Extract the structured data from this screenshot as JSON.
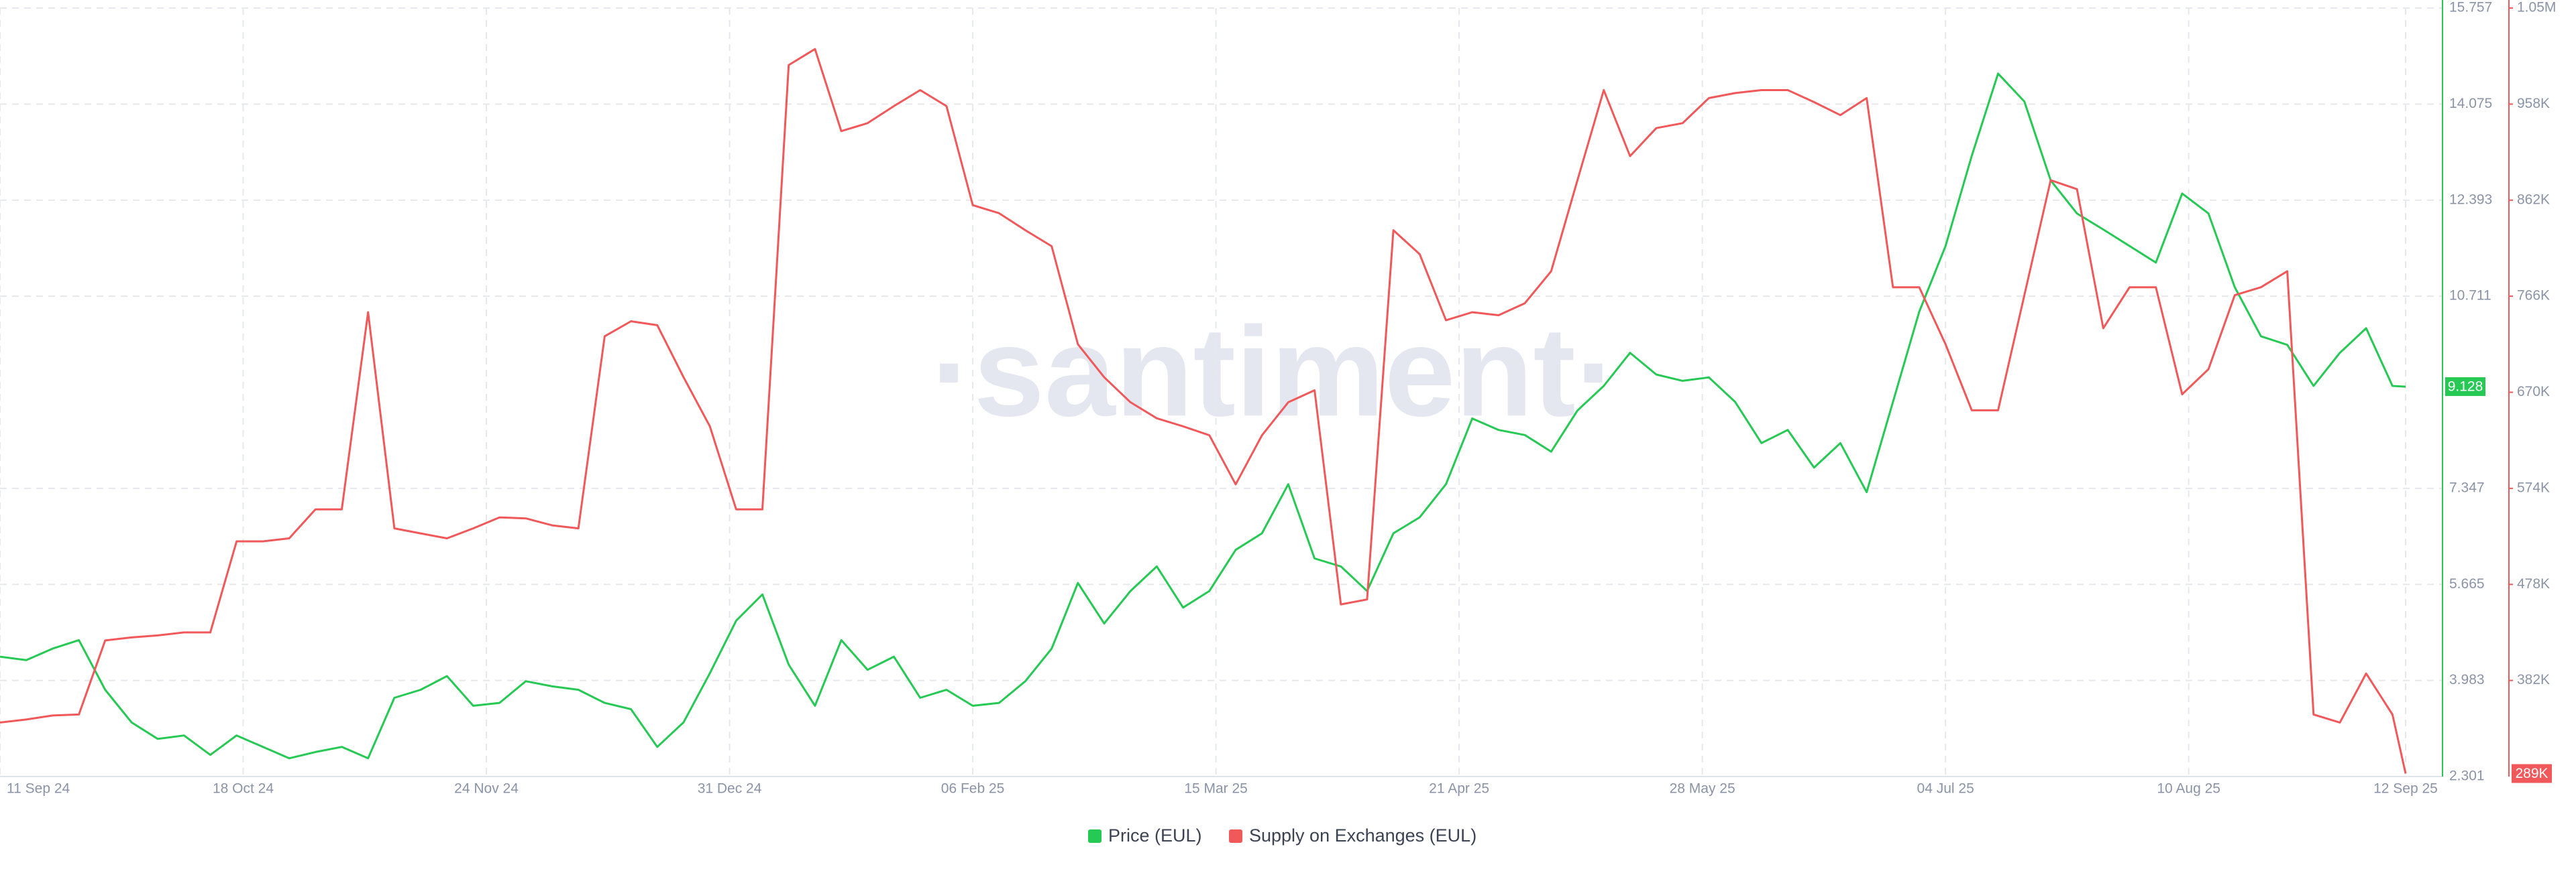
{
  "chart_data": {
    "type": "line",
    "watermark": "·santiment·",
    "x": [
      "2024-09-11",
      "2024-09-15",
      "2024-09-19",
      "2024-09-23",
      "2024-09-27",
      "2024-10-01",
      "2024-10-05",
      "2024-10-09",
      "2024-10-13",
      "2024-10-17",
      "2024-10-21",
      "2024-10-25",
      "2024-10-29",
      "2024-11-02",
      "2024-11-06",
      "2024-11-10",
      "2024-11-14",
      "2024-11-18",
      "2024-11-22",
      "2024-11-26",
      "2024-11-30",
      "2024-12-04",
      "2024-12-08",
      "2024-12-12",
      "2024-12-16",
      "2024-12-20",
      "2024-12-24",
      "2024-12-28",
      "2025-01-01",
      "2025-01-05",
      "2025-01-09",
      "2025-01-13",
      "2025-01-17",
      "2025-01-21",
      "2025-01-25",
      "2025-01-29",
      "2025-02-02",
      "2025-02-06",
      "2025-02-10",
      "2025-02-14",
      "2025-02-18",
      "2025-02-22",
      "2025-02-26",
      "2025-03-02",
      "2025-03-06",
      "2025-03-10",
      "2025-03-14",
      "2025-03-18",
      "2025-03-22",
      "2025-03-26",
      "2025-03-30",
      "2025-04-03",
      "2025-04-07",
      "2025-04-11",
      "2025-04-15",
      "2025-04-19",
      "2025-04-23",
      "2025-04-27",
      "2025-05-01",
      "2025-05-05",
      "2025-05-09",
      "2025-05-13",
      "2025-05-17",
      "2025-05-21",
      "2025-05-25",
      "2025-05-29",
      "2025-06-02",
      "2025-06-06",
      "2025-06-10",
      "2025-06-14",
      "2025-06-18",
      "2025-06-22",
      "2025-06-26",
      "2025-06-30",
      "2025-07-04",
      "2025-07-08",
      "2025-07-12",
      "2025-07-16",
      "2025-07-20",
      "2025-07-24",
      "2025-07-28",
      "2025-08-01",
      "2025-08-05",
      "2025-08-09",
      "2025-08-13",
      "2025-08-17",
      "2025-08-21",
      "2025-08-25",
      "2025-08-29",
      "2025-09-02",
      "2025-09-06",
      "2025-09-10",
      "2025-09-12"
    ],
    "xlim": [
      "2024-09-11",
      "2025-09-12"
    ],
    "xticks": [
      {
        "value": "2024-09-11",
        "label": "11 Sep 24"
      },
      {
        "value": "2024-10-18",
        "label": "18 Oct 24"
      },
      {
        "value": "2024-11-24",
        "label": "24 Nov 24"
      },
      {
        "value": "2024-12-31",
        "label": "31 Dec 24"
      },
      {
        "value": "2025-02-06",
        "label": "06 Feb 25"
      },
      {
        "value": "2025-03-15",
        "label": "15 Mar 25"
      },
      {
        "value": "2025-04-21",
        "label": "21 Apr 25"
      },
      {
        "value": "2025-05-28",
        "label": "28 May 25"
      },
      {
        "value": "2025-07-04",
        "label": "04 Jul 25"
      },
      {
        "value": "2025-08-10",
        "label": "10 Aug 25"
      },
      {
        "value": "2025-09-12",
        "label": "12 Sep 25"
      }
    ],
    "ylim": [
      2.301,
      15.757
    ],
    "yticks": [
      2.301,
      3.983,
      5.665,
      7.347,
      10.711,
      12.393,
      14.075,
      15.757
    ],
    "y2lim": [
      286000,
      1054000
    ],
    "y2ticks": [
      {
        "value": 382000,
        "label": "382K"
      },
      {
        "value": 478000,
        "label": "478K"
      },
      {
        "value": 574000,
        "label": "574K"
      },
      {
        "value": 670000,
        "label": "670K"
      },
      {
        "value": 766000,
        "label": "766K"
      },
      {
        "value": 862000,
        "label": "862K"
      },
      {
        "value": 958000,
        "label": "958K"
      },
      {
        "value": 1054000,
        "label": "1.05M"
      }
    ],
    "grid": true,
    "legend": "bottom",
    "series": [
      {
        "name": "Price (EUL)",
        "color": "#26c953",
        "axis": "y",
        "values": [
          4.4,
          4.34,
          4.54,
          4.69,
          3.82,
          3.25,
          2.96,
          3.02,
          2.68,
          3.02,
          2.82,
          2.62,
          2.73,
          2.82,
          2.62,
          3.68,
          3.82,
          4.06,
          3.54,
          3.59,
          3.97,
          3.88,
          3.82,
          3.59,
          3.48,
          2.82,
          3.25,
          4.11,
          5.03,
          5.49,
          4.26,
          3.54,
          4.69,
          4.17,
          4.4,
          3.68,
          3.82,
          3.54,
          3.59,
          3.97,
          4.54,
          5.69,
          4.98,
          5.55,
          5.98,
          5.26,
          5.55,
          6.27,
          6.56,
          7.42,
          6.12,
          5.98,
          5.55,
          6.56,
          6.84,
          7.42,
          8.57,
          8.37,
          8.28,
          7.99,
          8.71,
          9.14,
          9.72,
          9.34,
          9.23,
          9.29,
          8.86,
          8.14,
          8.37,
          7.71,
          8.14,
          7.28,
          8.86,
          10.44,
          11.59,
          13.17,
          14.61,
          14.12,
          12.74,
          12.16,
          11.88,
          11.59,
          11.3,
          12.51,
          12.16,
          10.87,
          10.01,
          9.86,
          9.14,
          9.72,
          10.15,
          9.14,
          9.128
        ]
      },
      {
        "name": "Supply on Exchanges (EUL)",
        "color": "#f0585a",
        "axis": "y2",
        "values": [
          340000,
          343000,
          347000,
          348000,
          422000,
          425000,
          427000,
          430000,
          430000,
          521000,
          521000,
          524000,
          553000,
          553000,
          750000,
          534000,
          529000,
          524000,
          534000,
          545000,
          544000,
          537000,
          534000,
          726000,
          741000,
          737000,
          685000,
          636000,
          553000,
          553000,
          997000,
          1013000,
          931000,
          939000,
          956000,
          972000,
          956000,
          857000,
          849000,
          832000,
          816000,
          718000,
          685000,
          660000,
          644000,
          636000,
          627000,
          578000,
          627000,
          660000,
          672000,
          458000,
          463000,
          832000,
          808000,
          742000,
          750000,
          747000,
          759000,
          791000,
          882000,
          972000,
          906000,
          934000,
          939000,
          964000,
          969000,
          972000,
          972000,
          960000,
          947000,
          964000,
          775000,
          775000,
          718000,
          652000,
          652000,
          767000,
          882000,
          873000,
          734000,
          775000,
          775000,
          668000,
          693000,
          767000,
          775000,
          791000,
          348000,
          340000,
          389000,
          348000,
          289000
        ],
        "value_labels": {
          "92": "289K"
        }
      }
    ]
  }
}
